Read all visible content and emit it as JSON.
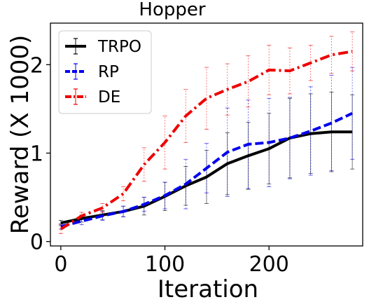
{
  "chart_data": {
    "type": "line",
    "title": "Hopper",
    "xlabel": "Iteration",
    "ylabel": "Reward (X 1000)",
    "xlim": [
      -10,
      290
    ],
    "ylim": [
      -0.05,
      2.47
    ],
    "xticks": [
      0,
      100,
      200
    ],
    "yticks": [
      0,
      1,
      2
    ],
    "grid": false,
    "legend_position": "upper-left",
    "x": [
      0,
      20,
      40,
      60,
      80,
      100,
      120,
      140,
      160,
      180,
      200,
      220,
      240,
      260,
      280
    ],
    "series": [
      {
        "name": "TRPO",
        "color": "#000000",
        "line_style": "solid",
        "values": [
          0.21,
          0.26,
          0.3,
          0.34,
          0.4,
          0.51,
          0.63,
          0.73,
          0.88,
          0.97,
          1.05,
          1.17,
          1.22,
          1.24,
          1.24
        ],
        "err": [
          0.03,
          0.04,
          0.05,
          0.06,
          0.1,
          0.16,
          0.22,
          0.3,
          0.35,
          0.38,
          0.4,
          0.45,
          0.45,
          0.45,
          0.42
        ]
      },
      {
        "name": "RP",
        "color": "#0000ee",
        "line_style": "dashed",
        "values": [
          0.17,
          0.23,
          0.29,
          0.34,
          0.42,
          0.52,
          0.65,
          0.83,
          1.01,
          1.1,
          1.12,
          1.17,
          1.25,
          1.34,
          1.45
        ],
        "err": [
          0.03,
          0.04,
          0.05,
          0.06,
          0.08,
          0.15,
          0.28,
          0.28,
          0.5,
          0.5,
          0.5,
          0.46,
          0.5,
          0.54,
          0.52
        ]
      },
      {
        "name": "DE",
        "color": "#ee0000",
        "line_style": "dashdot",
        "values": [
          0.14,
          0.29,
          0.38,
          0.54,
          0.87,
          1.12,
          1.42,
          1.62,
          1.72,
          1.81,
          1.94,
          1.93,
          2.02,
          2.11,
          2.15
        ],
        "err": [
          0.05,
          0.04,
          0.05,
          0.08,
          0.19,
          0.3,
          0.3,
          0.35,
          0.29,
          0.29,
          0.28,
          0.26,
          0.2,
          0.21,
          0.22
        ]
      }
    ]
  }
}
